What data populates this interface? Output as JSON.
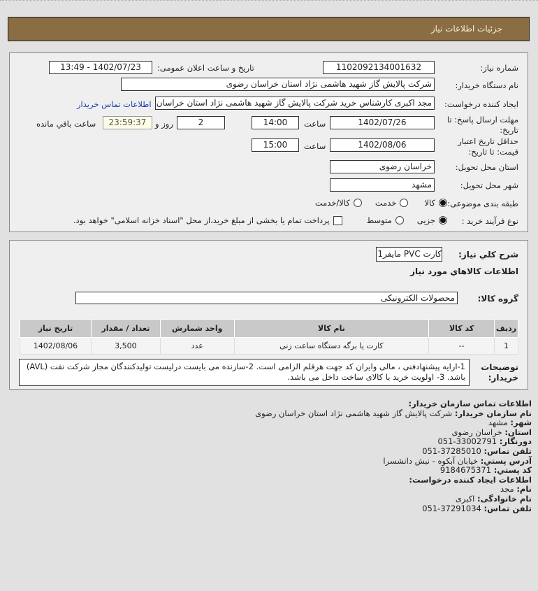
{
  "header": {
    "title": "جزئیات اطلاعات نیاز"
  },
  "form": {
    "need_number_label": "شماره نیاز:",
    "need_number": "1102092134001632",
    "announce_label": "تاریخ و ساعت اعلان عمومی:",
    "announce_value": "1402/07/23 - 13:49",
    "buyer_label": "نام دستگاه خریدار:",
    "buyer_value": "شرکت پالایش گاز شهید هاشمی نژاد   استان خراسان رضوی",
    "creator_label": "ایجاد کننده درخواست:",
    "creator_value": "مجد اکبری کارشناس خرید شرکت پالایش گاز شهید هاشمی نژاد   استان خراسان رضوی",
    "contact_link": "اطلاعات تماس خریدار",
    "deadline_label": "مهلت ارسال پاسخ: تا تاریخ:",
    "deadline_date": "1402/07/26",
    "time_label": "ساعت",
    "deadline_time": "14:00",
    "days": "2",
    "days_label": "روز و",
    "remaining": "23:59:37",
    "remaining_label": "ساعت باقي مانده",
    "validity_label": "حداقل تاریخ اعتبار قیمت: تا تاریخ:",
    "validity_date": "1402/08/06",
    "validity_time": "15:00",
    "province_label": "استان محل تحویل:",
    "province": "خراسان رضوی",
    "city_label": "شهر محل تحویل:",
    "city": "مشهد",
    "category_label": "طبقه بندی موضوعی:",
    "category_options": [
      "کالا",
      "خدمت",
      "کالا/خدمت"
    ],
    "category_selected": "کالا",
    "process_label": "نوع فرآیند خرید :",
    "process_options": [
      "جزیی",
      "متوسط"
    ],
    "process_selected": "جزیی",
    "payment_note": "پرداخت تمام یا بخشی از مبلغ خرید،از محل \"اسناد خزانه اسلامی\" خواهد بود."
  },
  "details": {
    "summary_label": "شرح کلي نياز:",
    "summary": "کارت PVC مایفر1 kb",
    "goods_title": "اطلاعات کالاهاي مورد نياز",
    "group_label": "گروه کالا:",
    "group": "محصولات الکترونیکی",
    "table": {
      "headers": [
        "ردیف",
        "کد کالا",
        "نام کالا",
        "واحد شمارش",
        "تعداد / مقدار",
        "تاریخ نیاز"
      ],
      "rows": [
        [
          "1",
          "--",
          "کارت یا برگه دستگاه ساعت زنی",
          "عدد",
          "3,500",
          "1402/08/06"
        ]
      ]
    },
    "notes_label": "توضیحات خریدار:",
    "notes": "1-ارایه پیشنهادفنی ، مالی وایران کد جهت هرقلم الزامی است. 2-سازنده می بایست درلیست تولیدکنندگان مجاز شرکت نفت (AVL) باشد. 3- اولویت خرید با کالای ساخت داخل می باشد."
  },
  "contact": {
    "title": "اطلاعات تماس سازمان خریدار:",
    "org_label": "نام سازمان خریدار:",
    "org": "شرکت پالایش گاز شهید هاشمی نژاد استان خراسان رضوی",
    "city_label": "شهر:",
    "city": "مشهد",
    "province_label": "استان:",
    "province": "خراسان رضوی",
    "fax_label": "دورنگار:",
    "fax": "33002791-051",
    "phone_label": "تلفن تماس:",
    "phone": "37285010-051",
    "address_label": "آدرس پستي:",
    "address": "خیابان آبکوه - نبش دانشسرا",
    "postal_label": "کد پستي:",
    "postal": "9184675371",
    "creator_title": "اطلاعات ایجاد کننده درخواست:",
    "name_label": "نام:",
    "name": "مجد",
    "family_label": "نام خانوادگی:",
    "family": "اکبری",
    "cphone_label": "تلفن تماس:",
    "cphone": "37291034-051"
  },
  "colors": {
    "header": "#8b6d43",
    "link": "#1a3fb0"
  }
}
